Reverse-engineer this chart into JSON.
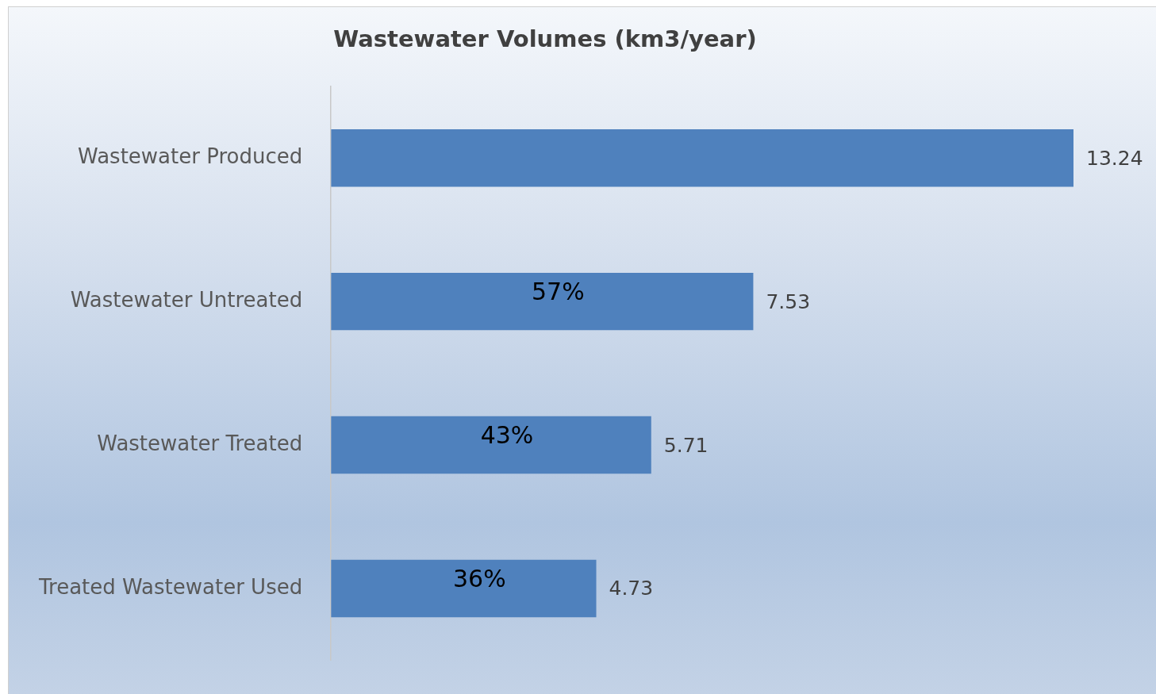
{
  "chart_data": {
    "type": "bar",
    "orientation": "horizontal",
    "title": "Wastewater Volumes (km3/year)",
    "categories": [
      "Wastewater Produced",
      "Wastewater Untreated",
      "Wastewater Treated",
      "Treated Wastewater Used"
    ],
    "values": [
      13.24,
      7.53,
      5.71,
      4.73
    ],
    "color": "#4f81bd",
    "xlim": [
      0,
      13.24
    ],
    "grid": false,
    "legend": false,
    "tick_labels": "y",
    "data_labels": true,
    "annotations": [
      "57%",
      "43%",
      "36%"
    ]
  }
}
